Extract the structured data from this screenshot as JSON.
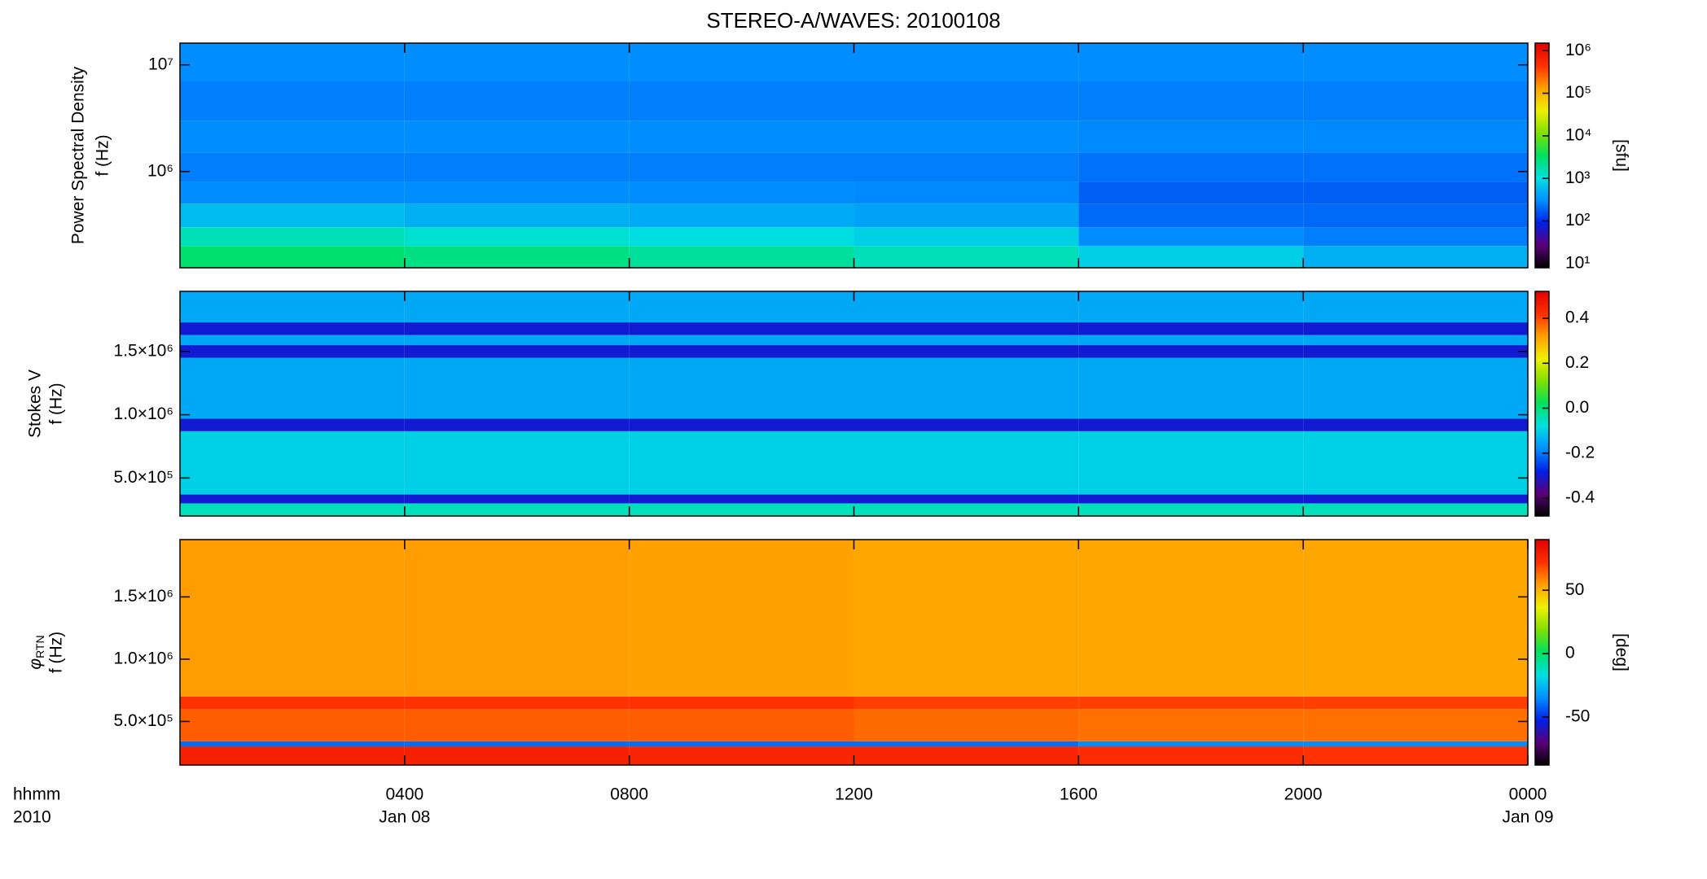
{
  "chart_data": [
    {
      "type": "heatmap",
      "title": "STEREO-A/WAVES: 20100108",
      "ylabel": "Power Spectral Density",
      "ylabel2": "f (Hz)",
      "x": [
        0,
        4,
        8,
        12,
        16,
        20,
        24
      ],
      "xlim": [
        0,
        24
      ],
      "xticks": [
        4,
        8,
        12,
        16,
        20
      ],
      "y_bins": [
        125000,
        200000,
        300000,
        500000,
        800000,
        1500000,
        3000000,
        7000000,
        16000000
      ],
      "ylim": [
        125000,
        16000000
      ],
      "ylog": true,
      "yticks": [
        {
          "value": 1000000,
          "label": "10⁶"
        },
        {
          "value": 10000000,
          "label": "10⁷"
        }
      ],
      "z": [
        [
          3000,
          2500,
          2000,
          1500,
          800,
          500
        ],
        [
          1500,
          1200,
          1000,
          800,
          300,
          250
        ],
        [
          600,
          500,
          450,
          400,
          200,
          200
        ],
        [
          300,
          300,
          300,
          280,
          180,
          180
        ],
        [
          250,
          250,
          250,
          250,
          220,
          220
        ],
        [
          300,
          300,
          300,
          300,
          280,
          280
        ],
        [
          250,
          250,
          250,
          250,
          250,
          250
        ],
        [
          300,
          300,
          300,
          300,
          300,
          300
        ]
      ],
      "clim": [
        8,
        1500000
      ],
      "clog": true,
      "cticks": [
        {
          "value": 10,
          "label": "10¹"
        },
        {
          "value": 100,
          "label": "10²"
        },
        {
          "value": 1000,
          "label": "10³"
        },
        {
          "value": 10000,
          "label": "10⁴"
        },
        {
          "value": 100000,
          "label": "10⁵"
        },
        {
          "value": 1000000,
          "label": "10⁶"
        }
      ],
      "clabel": "[sfu]",
      "colormap": [
        "#000000",
        "#5a0078",
        "#0020e8",
        "#0090ff",
        "#00e0e0",
        "#00e060",
        "#80e000",
        "#f0f000",
        "#ffa000",
        "#ff3000",
        "#e00000"
      ]
    },
    {
      "type": "heatmap",
      "ylabel": "Stokes V",
      "ylabel2": "f (Hz)",
      "x": [
        0,
        4,
        8,
        12,
        16,
        20,
        24
      ],
      "xlim": [
        0,
        24
      ],
      "xticks": [
        4,
        8,
        12,
        16,
        20
      ],
      "y_bins": [
        200000,
        300000,
        370000,
        870000,
        970000,
        1450000,
        1550000,
        1630000,
        1730000,
        1975000
      ],
      "ylim": [
        200000,
        1975000
      ],
      "ylog": false,
      "yticks": [
        {
          "value": 500000,
          "label": "5.0×10⁵"
        },
        {
          "value": 1000000,
          "label": "1.0×10⁶"
        },
        {
          "value": 1500000,
          "label": "1.5×10⁶"
        }
      ],
      "z": [
        [
          -0.05,
          -0.05,
          -0.05,
          -0.05,
          -0.05,
          -0.05
        ],
        [
          -0.3,
          -0.3,
          -0.3,
          -0.3,
          -0.3,
          -0.3
        ],
        [
          -0.1,
          -0.1,
          -0.1,
          -0.1,
          -0.1,
          -0.1
        ],
        [
          -0.3,
          -0.3,
          -0.3,
          -0.3,
          -0.3,
          -0.3
        ],
        [
          -0.15,
          -0.15,
          -0.15,
          -0.15,
          -0.15,
          -0.15
        ],
        [
          -0.3,
          -0.3,
          -0.3,
          -0.3,
          -0.3,
          -0.3
        ],
        [
          -0.15,
          -0.15,
          -0.15,
          -0.15,
          -0.15,
          -0.15
        ],
        [
          -0.3,
          -0.3,
          -0.3,
          -0.3,
          -0.3,
          -0.3
        ],
        [
          -0.15,
          -0.15,
          -0.15,
          -0.15,
          -0.15,
          -0.15
        ]
      ],
      "clim": [
        -0.48,
        0.52
      ],
      "clog": false,
      "cticks": [
        -0.4,
        -0.2,
        {
          "value": 0,
          "label": "0.0"
        },
        0.2,
        0.4
      ],
      "colormap": [
        "#000000",
        "#5a0078",
        "#0020e8",
        "#0090ff",
        "#00e0e0",
        "#00e060",
        "#80e000",
        "#f0f000",
        "#ffa000",
        "#ff3000",
        "#e00000"
      ]
    },
    {
      "type": "heatmap",
      "ylabel": {
        "symbol": "φ",
        "subscript": "RTN"
      },
      "ylabel2": "f (Hz)",
      "x": [
        0,
        4,
        8,
        12,
        16,
        20,
        24
      ],
      "xlim": [
        0,
        24
      ],
      "xticks": [
        {
          "value": 4,
          "label": "0400"
        },
        {
          "value": 8,
          "label": "0800"
        },
        {
          "value": 12,
          "label": "1200"
        },
        {
          "value": 16,
          "label": "1600"
        },
        {
          "value": 20,
          "label": "2000"
        },
        {
          "value": 24,
          "label": "0000"
        }
      ],
      "date_labels": [
        {
          "value": 4,
          "label": "Jan 08"
        },
        {
          "value": 24,
          "label": "Jan 09"
        }
      ],
      "x_units": [
        "hhmm",
        "2010"
      ],
      "y_bins": [
        150000,
        300000,
        340000,
        600000,
        700000,
        1960000
      ],
      "ylim": [
        150000,
        1960000
      ],
      "ylog": false,
      "yticks": [
        {
          "value": 500000,
          "label": "5.0×10⁵"
        },
        {
          "value": 1000000,
          "label": "1.0×10⁶"
        },
        {
          "value": 1500000,
          "label": "1.5×10⁶"
        }
      ],
      "z": [
        [
          78,
          78,
          76,
          76,
          74,
          72
        ],
        [
          -40,
          -40,
          -40,
          -40,
          -35,
          -35
        ],
        [
          65,
          65,
          65,
          63,
          62,
          62
        ],
        [
          72,
          72,
          72,
          70,
          70,
          70
        ],
        [
          55,
          55,
          54,
          53,
          53,
          53
        ]
      ],
      "clim": [
        -88,
        90
      ],
      "clog": false,
      "cticks": [
        -50,
        0,
        50
      ],
      "clabel": "[deg]",
      "colormap": [
        "#000000",
        "#5a0078",
        "#0020e8",
        "#0090ff",
        "#00e0e0",
        "#00e060",
        "#80e000",
        "#f0f000",
        "#ffa000",
        "#ff3000",
        "#e00000"
      ]
    }
  ]
}
